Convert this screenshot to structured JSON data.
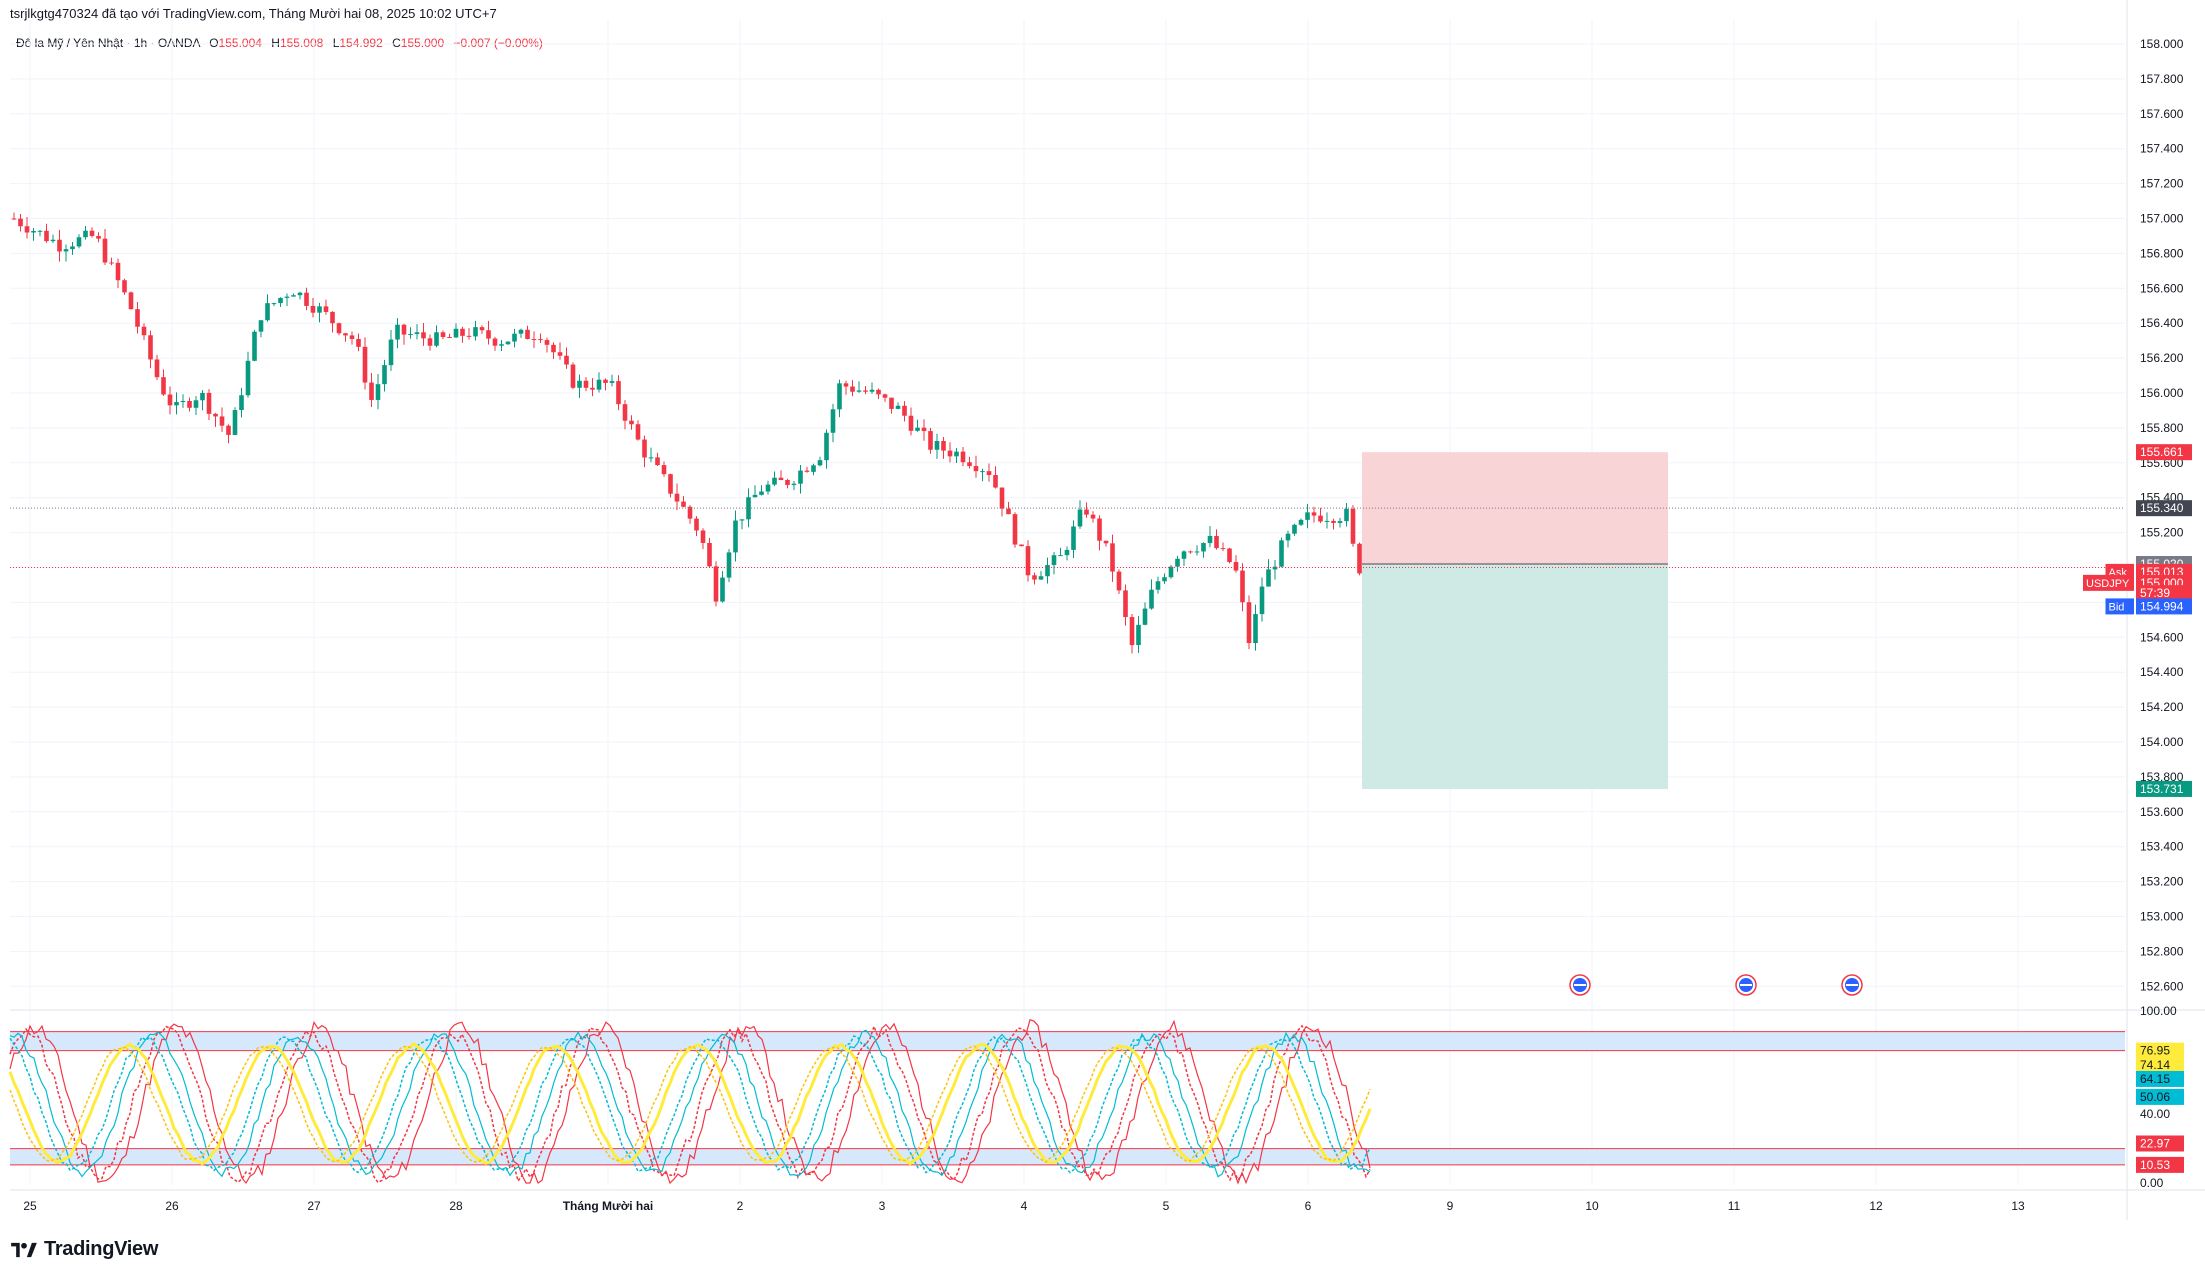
{
  "header": {
    "attribution": "tsrjlkgtg470324 đã tạo với TradingView.com, Tháng Mười hai 08, 2025 10:02 UTC+7",
    "symbol": "Đô la Mỹ / Yên Nhật · 1h · OANDA",
    "o_label": "O",
    "o_value": "155.004",
    "h_label": "H",
    "h_value": "155.008",
    "l_label": "L",
    "l_value": "154.992",
    "c_label": "C",
    "c_value": "155.000",
    "change": "−0.007 (−0.00%)"
  },
  "brand": "TradingView",
  "colors": {
    "up": "#089981",
    "down": "#f23645",
    "stoch_k": "#f23645",
    "stoch_d": "#00bcd4",
    "stoch_slow": "#ffeb3b",
    "band_fill": "#d6e8fb",
    "risk_zone": "#f8d4d7",
    "reward_zone": "#cfe9e4"
  },
  "chart_data": [
    {
      "type": "candlestick",
      "title": "",
      "price_axis_ticks": [
        "158.000",
        "157.800",
        "157.600",
        "157.400",
        "157.200",
        "157.000",
        "156.800",
        "156.600",
        "156.400",
        "156.200",
        "156.000",
        "155.800",
        "155.600",
        "155.400",
        "155.200",
        "155.000",
        "154.800",
        "154.600",
        "154.400",
        "154.200",
        "154.000",
        "153.800",
        "153.600",
        "153.400",
        "153.200",
        "153.000",
        "152.800",
        "152.600"
      ],
      "ylim": [
        152.55,
        158.05
      ],
      "x_ticks": [
        "25",
        "26",
        "27",
        "28",
        "Tháng Mười hai",
        "2",
        "3",
        "4",
        "5",
        "6",
        "9",
        "10",
        "11",
        "12",
        "13"
      ],
      "ohlc_key_points": [
        {
          "label": "25",
          "close": 157.0
        },
        {
          "label": "26",
          "close": 155.95
        },
        {
          "label": "27",
          "close": 156.6
        },
        {
          "label": "28",
          "close": 156.35
        },
        {
          "label": "Tháng Mười hai",
          "close": 156.05
        },
        {
          "label": "2",
          "close": 154.9
        },
        {
          "label": "3",
          "close": 156.05
        },
        {
          "label": "4",
          "close": 155.1
        },
        {
          "label": "5",
          "close": 154.65
        },
        {
          "label": "6",
          "close": 155.3
        },
        {
          "label": "last",
          "close": 155.0
        }
      ],
      "price_labels": [
        {
          "tag": "",
          "value": "155.661",
          "style": "sl"
        },
        {
          "tag": "",
          "value": "155.340",
          "style": "line"
        },
        {
          "tag": "",
          "value": "155.020",
          "style": "entry"
        },
        {
          "tag": "Ask",
          "value": "155.013",
          "style": "ask"
        },
        {
          "tag": "USDJPY",
          "value": "155.000",
          "style": "last"
        },
        {
          "tag": "",
          "value": "57:39",
          "style": "timer"
        },
        {
          "tag": "Bid",
          "value": "154.994",
          "style": "bid"
        },
        {
          "tag": "",
          "value": "153.731",
          "style": "tp"
        }
      ],
      "position": {
        "entry": 155.02,
        "stop": 155.661,
        "target": 153.731
      },
      "event_markers": [
        "10",
        "11",
        "12"
      ]
    },
    {
      "type": "line",
      "title": "",
      "indicator_axis_ticks": [
        "100.00",
        "40.00",
        "0.00"
      ],
      "ylim": [
        0,
        100
      ],
      "bands": [
        [
          76.95,
          88
        ],
        [
          10.53,
          20
        ]
      ],
      "indicator_labels": [
        {
          "value": "76.95",
          "color": "#ffeb3b"
        },
        {
          "value": "74.14",
          "color": "#ffeb3b"
        },
        {
          "value": "64.15",
          "color": "#00bcd4"
        },
        {
          "value": "50.06",
          "color": "#00bcd4"
        },
        {
          "value": "22.97",
          "color": "#f23645"
        },
        {
          "value": "10.53",
          "color": "#f23645"
        }
      ]
    }
  ]
}
